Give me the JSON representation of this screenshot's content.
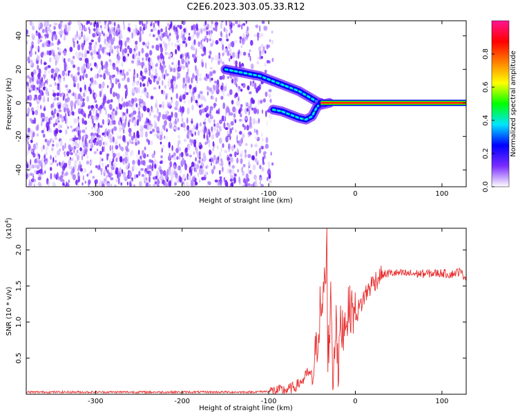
{
  "page": {
    "title": "C2E6.2023.303.05.33.R12"
  },
  "chart_data": [
    {
      "type": "heatmap",
      "title": "C2E6.2023.303.05.33.R12",
      "xlabel": "Height of straight line (km)",
      "ylabel": "Frequency (Hz)",
      "xlim": [
        -380,
        128
      ],
      "ylim": [
        -50,
        49
      ],
      "x_ticks": [
        -300,
        -200,
        -100,
        0,
        100
      ],
      "x_tick_labels": [
        "-300",
        "-200",
        "-100",
        "0",
        "100"
      ],
      "y_ticks": [
        -40,
        -20,
        0,
        20,
        40
      ],
      "y_tick_labels": [
        "-40",
        "-20",
        "0",
        "20",
        "40"
      ],
      "noise_region_x": [
        -380,
        -95
      ],
      "features": [
        {
          "name": "upper-branch",
          "x": [
            -150,
            -130,
            -110,
            -95,
            -80,
            -65,
            -55,
            -45,
            -38,
            -30
          ],
          "y": [
            20,
            18,
            16,
            13,
            10,
            7,
            4,
            1,
            -1,
            0
          ]
        },
        {
          "name": "lower-branch",
          "x": [
            -95,
            -85,
            -75,
            -65,
            -57,
            -50,
            -45,
            -40
          ],
          "y": [
            -4,
            -5,
            -7,
            -9,
            -10,
            -8,
            -3,
            0
          ]
        },
        {
          "name": "zero-line",
          "x": [
            -40,
            -30,
            -20,
            -10,
            0,
            50,
            100,
            128
          ],
          "y": [
            0,
            0,
            0,
            0,
            0,
            0,
            0,
            0
          ]
        }
      ],
      "colorbar": {
        "label": "Normalized spectral amplitude",
        "range": [
          0,
          1
        ],
        "ticks": [
          0.0,
          0.2,
          0.4,
          0.6,
          0.8
        ],
        "tick_labels": [
          "0.0",
          "0.2",
          "0.4",
          "0.6",
          "0.8"
        ],
        "colors": [
          "#ffffff",
          "#7a2cff",
          "#0000ff",
          "#00e5ff",
          "#00ff00",
          "#ffff00",
          "#ff8000",
          "#ff0000",
          "#ff1493"
        ]
      },
      "grid": false
    },
    {
      "type": "line",
      "xlabel": "Height of straight line (km)",
      "ylabel": "SNR (10 * v/v)",
      "y_multiplier": "(x10",
      "y_multiplier_exp": "4",
      "y_multiplier_close": ")",
      "xlim": [
        -380,
        128
      ],
      "ylim": [
        0,
        2.3
      ],
      "x_ticks": [
        -300,
        -200,
        -100,
        0,
        100
      ],
      "x_tick_labels": [
        "-300",
        "-200",
        "-100",
        "0",
        "100"
      ],
      "y_ticks": [
        0.5,
        1.0,
        1.5,
        2.0
      ],
      "y_tick_labels": [
        "0.5",
        "1.0",
        "1.5",
        "2.0"
      ],
      "color": "#e83030",
      "series": [
        {
          "x": [
            -380,
            -300,
            -200,
            -120,
            -100,
            -80,
            -70,
            -60,
            -55,
            -50,
            -45,
            -42,
            -40,
            -38,
            -36,
            -34,
            -33,
            -32,
            -30,
            -28,
            -26,
            -24,
            -22,
            -20,
            -18,
            -15,
            -10,
            -5,
            0,
            5,
            10,
            15,
            20,
            30,
            40,
            60,
            80,
            100,
            110,
            120,
            128
          ],
          "y": [
            0.03,
            0.03,
            0.03,
            0.03,
            0.04,
            0.06,
            0.1,
            0.2,
            0.3,
            0.25,
            0.6,
            1.0,
            1.3,
            0.9,
            1.7,
            1.5,
            2.3,
            0.6,
            0.8,
            1.4,
            0.2,
            0.6,
            1.3,
            0.1,
            0.9,
            0.9,
            1.1,
            1.2,
            1.1,
            1.2,
            1.35,
            1.45,
            1.55,
            1.65,
            1.68,
            1.67,
            1.67,
            1.68,
            1.66,
            1.7,
            1.62
          ]
        }
      ],
      "grid": false
    }
  ]
}
